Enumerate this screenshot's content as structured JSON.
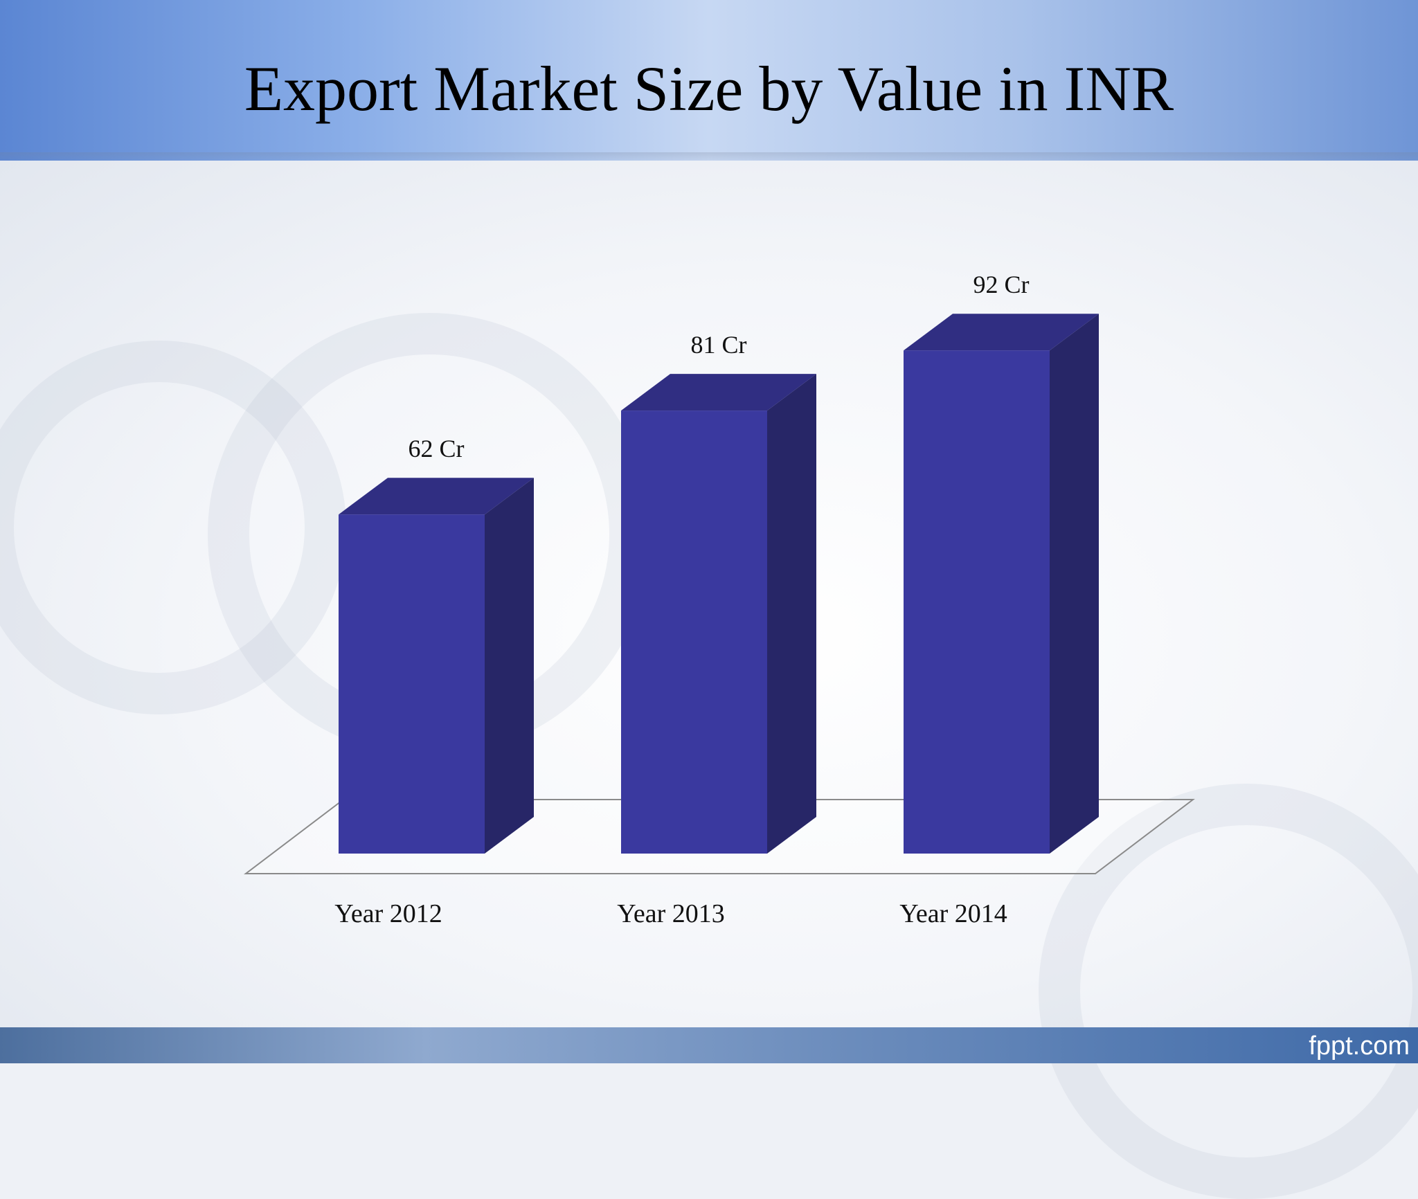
{
  "slide": {
    "title": "Export Market Size by Value in INR",
    "brand": "fppt.com"
  },
  "chart_data": {
    "type": "bar",
    "style": "3d-column",
    "categories": [
      "Year 2012",
      "Year 2013",
      "Year 2014"
    ],
    "values": [
      62,
      81,
      92
    ],
    "value_labels": [
      "62 Cr",
      "81 Cr",
      "92 Cr"
    ],
    "title": "Export Market Size by Value in INR",
    "xlabel": "",
    "ylabel": "",
    "ylim": [
      0,
      100
    ],
    "grid": false,
    "legend": "none",
    "colors": {
      "front": "#3a399f",
      "side": "#272667",
      "top": "#302e82",
      "floor": "#8a8a8a"
    }
  }
}
